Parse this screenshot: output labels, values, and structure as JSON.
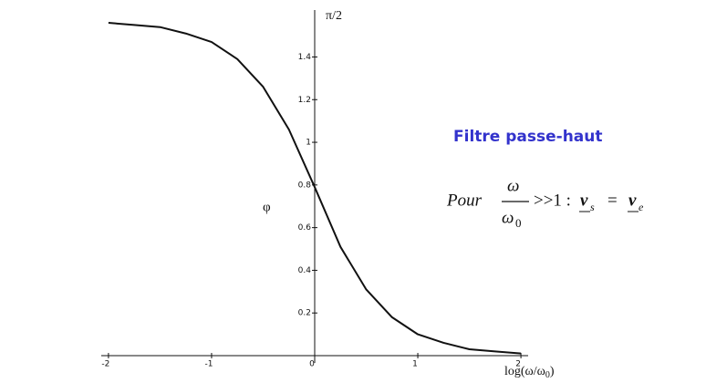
{
  "chart_data": {
    "type": "line",
    "ylabel": "φ",
    "y_top_label": "π/2",
    "xlabel": {
      "main": "log(ω/ω",
      "sub": "0",
      "end": ")"
    },
    "annotation_title": "Filtre passe-haut",
    "formula": {
      "pour": "Pour",
      "num": "ω",
      "den": "ω",
      "den_sub": "0",
      "relation": ">>1 :",
      "lhs": "v",
      "lhs_sub": "s",
      "eq": "=",
      "rhs": "v",
      "rhs_sub": "e"
    },
    "x": [
      -2,
      -1.75,
      -1.5,
      -1.25,
      -1,
      -0.75,
      -0.5,
      -0.25,
      0,
      0.25,
      0.5,
      0.75,
      1,
      1.25,
      1.5,
      1.75,
      2
    ],
    "series": [
      {
        "color": "#111111",
        "values": [
          1.56,
          1.55,
          1.54,
          1.51,
          1.47,
          1.39,
          1.26,
          1.06,
          0.79,
          0.51,
          0.31,
          0.18,
          0.1,
          0.06,
          0.03,
          0.02,
          0.01
        ]
      }
    ],
    "xlim": [
      -2.07,
      2.07
    ],
    "ylim": [
      0,
      1.62
    ],
    "xticks": [
      -2,
      -1,
      0,
      1,
      2
    ],
    "yticks": [
      0.2,
      0.4,
      0.6,
      0.8,
      1,
      1.2,
      1.4
    ]
  }
}
